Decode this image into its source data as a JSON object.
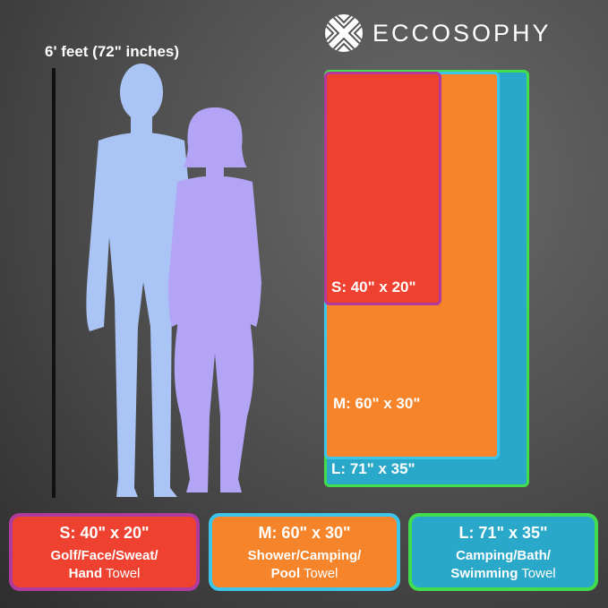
{
  "brand": {
    "name": "ECCOSOPHY",
    "icon": "woven-circle-logo-icon"
  },
  "height_reference": {
    "label": "6' feet (72\" inches)"
  },
  "colors": {
    "small": "#ee4130",
    "small_border": "#b03a9e",
    "medium": "#f5842a",
    "medium_border": "#3cc6ec",
    "large": "#2aa8c9",
    "large_border": "#43dc4c",
    "man": "#a9c4f5",
    "woman": "#b3a4f5"
  },
  "diagram_labels": {
    "s": "S: 40\" x 20\"",
    "m": "M: 60\" x 30\"",
    "l": "L: 71\" x 35\""
  },
  "cards": [
    {
      "title": "S: 40\" x 20\"",
      "line1": "Golf/Face/Sweat/",
      "bold2": "Hand",
      "rest2": " Towel"
    },
    {
      "title": "M: 60\" x 30\"",
      "line1": "Shower/Camping/",
      "bold2": "Pool",
      "rest2": " Towel"
    },
    {
      "title": "L: 71\" x 35\"",
      "line1": "Camping/Bath/",
      "bold2": "Swimming",
      "rest2": " Towel"
    }
  ]
}
